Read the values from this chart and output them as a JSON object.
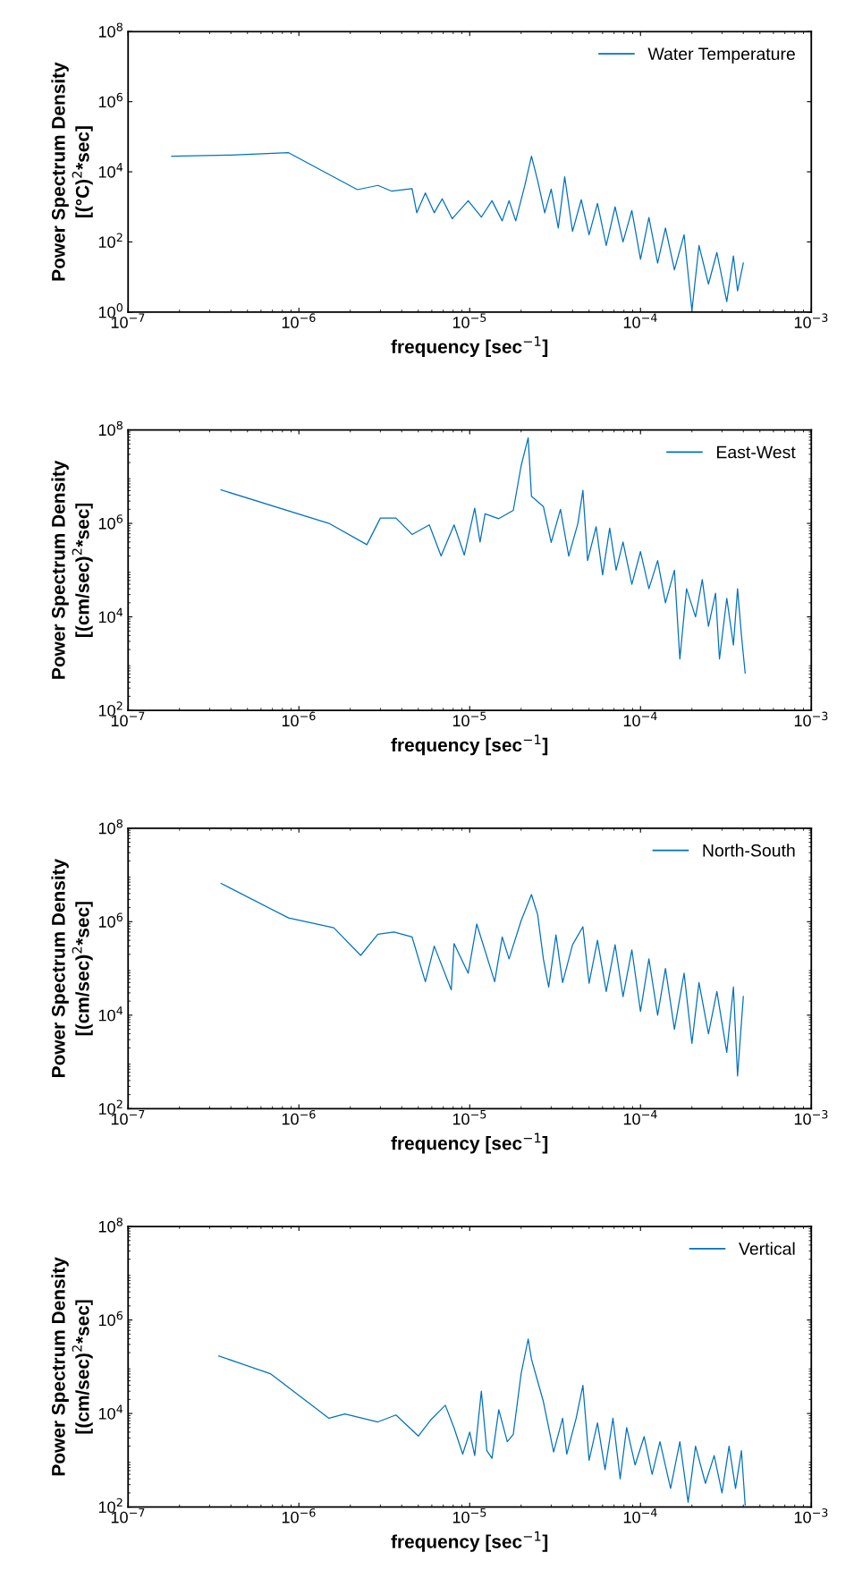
{
  "chart_data": [
    {
      "type": "line",
      "xlabel": "frequency [sec$^{−1}$]",
      "ylabel": "Power Spectrum Density\n[(°C)$^{2}$*sec]",
      "log": "xy",
      "legend": "top right",
      "grid": false,
      "xlim": [
        1e-07,
        0.001
      ],
      "ylim": [
        1,
        100000000.0
      ],
      "xticks": [
        {
          "value": 1e-07,
          "label": "10$^{−7}$"
        },
        {
          "value": 1e-06,
          "label": "10$^{−6}$"
        },
        {
          "value": 1e-05,
          "label": "10$^{−5}$"
        },
        {
          "value": 0.0001,
          "label": "10$^{−4}$"
        },
        {
          "value": 0.001,
          "label": "10$^{−3}$"
        }
      ],
      "yticks": [
        {
          "value": 1,
          "label": "10$^{0}$"
        },
        {
          "value": 100,
          "label": "10$^{2}$"
        },
        {
          "value": 10000,
          "label": "10$^{4}$"
        },
        {
          "value": 1000000,
          "label": "10$^{6}$"
        },
        {
          "value": 100000000,
          "label": "10$^{8}$"
        }
      ],
      "series": [
        {
          "name": "Water Temperature",
          "color": "#0072bd",
          "x": [
            1.8e-07,
            4e-07,
            8.7e-07,
            2.2e-06,
            2.9e-06,
            3.5e-06,
            4.6e-06,
            4.9e-06,
            5.5e-06,
            6.2e-06,
            6.9e-06,
            7.9e-06,
            9.8e-06,
            1.17e-05,
            1.35e-05,
            1.55e-05,
            1.7e-05,
            1.86e-05,
            2.1e-05,
            2.3e-05,
            2.5e-05,
            2.75e-05,
            3e-05,
            3.3e-05,
            3.6e-05,
            4e-05,
            4.5e-05,
            5e-05,
            5.6e-05,
            6.3e-05,
            7.1e-05,
            7.9e-05,
            8.9e-05,
            0.0001,
            0.000112,
            0.000126,
            0.00014,
            0.000158,
            0.00018,
            0.0002,
            0.00022,
            0.00025,
            0.00028,
            0.00032,
            0.00035,
            0.00037,
            0.0004
          ],
          "values": [
            28000.0,
            30000.0,
            35000.0,
            3100.0,
            4100.0,
            2800.0,
            3300.0,
            680.0,
            2500.0,
            680.0,
            1700.0,
            460.0,
            1500.0,
            510.0,
            1500.0,
            400.0,
            1500.0,
            400.0,
            4000.0,
            28000.0,
            5600.0,
            680.0,
            3200.0,
            250.0,
            7200.0,
            200.0,
            1600.0,
            160.0,
            1260.0,
            79,
            1000.0,
            100.0,
            790.0,
            32,
            500.0,
            25,
            250.0,
            16,
            160.0,
            1.1,
            79,
            6.3,
            50,
            2.0,
            40,
            4.0,
            25
          ]
        }
      ]
    },
    {
      "type": "line",
      "xlabel": "frequency [sec$^{−1}$]",
      "ylabel": "Power Spectrum Density\n[(cm/sec)$^{2}$*sec]",
      "log": "xy",
      "legend": "top right",
      "grid": false,
      "xlim": [
        1e-07,
        0.001
      ],
      "ylim": [
        100,
        100000000.0
      ],
      "xticks": [
        {
          "value": 1e-07,
          "label": "10$^{−7}$"
        },
        {
          "value": 1e-06,
          "label": "10$^{−6}$"
        },
        {
          "value": 1e-05,
          "label": "10$^{−5}$"
        },
        {
          "value": 0.0001,
          "label": "10$^{−4}$"
        },
        {
          "value": 0.001,
          "label": "10$^{−3}$"
        }
      ],
      "yticks": [
        {
          "value": 100,
          "label": "10$^{2}$"
        },
        {
          "value": 10000,
          "label": "10$^{4}$"
        },
        {
          "value": 1000000,
          "label": "10$^{6}$"
        },
        {
          "value": 100000000,
          "label": "10$^{8}$"
        }
      ],
      "series": [
        {
          "name": "East-West",
          "color": "#0072bd",
          "x": [
            3.5e-07,
            1.5e-06,
            2.5e-06,
            3e-06,
            3.7e-06,
            4.6e-06,
            5.8e-06,
            6.8e-06,
            8.1e-06,
            9.3e-06,
            1.07e-05,
            1.15e-05,
            1.23e-05,
            1.48e-05,
            1.8e-05,
            2e-05,
            2.2e-05,
            2.3e-05,
            2.7e-05,
            3e-05,
            3.4e-05,
            3.8e-05,
            4.3e-05,
            4.6e-05,
            4.9e-05,
            5.5e-05,
            6e-05,
            6.6e-05,
            7.2e-05,
            7.9e-05,
            8.9e-05,
            0.0001,
            0.000112,
            0.000126,
            0.00014,
            0.000158,
            0.00017,
            0.000186,
            0.00021,
            0.00023,
            0.00025,
            0.000275,
            0.00029,
            0.00032,
            0.00035,
            0.00037,
            0.00039,
            0.00041
          ],
          "values": [
            5200000.0,
            1000000.0,
            350000.0,
            1300000.0,
            1300000.0,
            580000.0,
            930000.0,
            200000.0,
            930000.0,
            210000.0,
            2100000.0,
            400000.0,
            1600000.0,
            1260000.0,
            1900000.0,
            17000000.0,
            68000000.0,
            3800000.0,
            2300000.0,
            390000.0,
            2000000.0,
            200000.0,
            1000000.0,
            5100000.0,
            160000.0,
            850000.0,
            79000.0,
            790000.0,
            100000.0,
            400000.0,
            50000.0,
            250000.0,
            40000.0,
            160000.0,
            20000.0,
            100000.0,
            1260.0,
            40000.0,
            10000.0,
            63000.0,
            6300.0,
            32000.0,
            1260.0,
            25000.0,
            2500.0,
            40000.0,
            4000.0,
            630.0
          ]
        }
      ]
    },
    {
      "type": "line",
      "xlabel": "frequency [sec$^{−1}$]",
      "ylabel": "Power Spectrum Density\n[(cm/sec)$^{2}$*sec]",
      "log": "xy",
      "legend": "top right",
      "grid": false,
      "xlim": [
        1e-07,
        0.001
      ],
      "ylim": [
        100,
        100000000.0
      ],
      "xticks": [
        {
          "value": 1e-07,
          "label": "10$^{−7}$"
        },
        {
          "value": 1e-06,
          "label": "10$^{−6}$"
        },
        {
          "value": 1e-05,
          "label": "10$^{−5}$"
        },
        {
          "value": 0.0001,
          "label": "10$^{−4}$"
        },
        {
          "value": 0.001,
          "label": "10$^{−3}$"
        }
      ],
      "yticks": [
        {
          "value": 100,
          "label": "10$^{2}$"
        },
        {
          "value": 10000,
          "label": "10$^{4}$"
        },
        {
          "value": 1000000,
          "label": "10$^{6}$"
        },
        {
          "value": 100000000,
          "label": "10$^{8}$"
        }
      ],
      "series": [
        {
          "name": "North-South",
          "color": "#0072bd",
          "x": [
            3.5e-07,
            8.7e-07,
            1.6e-06,
            2.3e-06,
            2.9e-06,
            3.6e-06,
            4.6e-06,
            5.5e-06,
            6.2e-06,
            7.8e-06,
            8.1e-06,
            9.8e-06,
            1.1e-05,
            1.4e-05,
            1.55e-05,
            1.7e-05,
            2e-05,
            2.3e-05,
            2.5e-05,
            2.7e-05,
            2.9e-05,
            3.2e-05,
            3.5e-05,
            4e-05,
            4.6e-05,
            5e-05,
            5.6e-05,
            6.3e-05,
            7.1e-05,
            7.9e-05,
            8.9e-05,
            0.0001,
            0.000112,
            0.000126,
            0.00014,
            0.000158,
            0.00018,
            0.0002,
            0.00022,
            0.00025,
            0.00028,
            0.00032,
            0.00035,
            0.00037,
            0.0004
          ],
          "values": [
            6600000.0,
            1200000.0,
            740000.0,
            190000.0,
            540000.0,
            600000.0,
            470000.0,
            52000.0,
            300000.0,
            35000.0,
            340000.0,
            79000.0,
            890000.0,
            52000.0,
            470000.0,
            160000.0,
            1050000.0,
            3800000.0,
            1400000.0,
            160000.0,
            40000.0,
            520000.0,
            50000.0,
            320000.0,
            780000.0,
            48000.0,
            400000.0,
            32000.0,
            320000.0,
            25000.0,
            250000.0,
            12000.0,
            160000.0,
            10000.0,
            100000.0,
            5000.0,
            79000.0,
            2500.0,
            50000.0,
            4000.0,
            32000.0,
            1600.0,
            40000.0,
            500.0,
            25000.0
          ]
        }
      ]
    },
    {
      "type": "line",
      "xlabel": "frequency [sec$^{−1}$]",
      "ylabel": "Power Spectrum Density\n[(cm/sec)$^{2}$*sec]",
      "log": "xy",
      "legend": "top right",
      "grid": false,
      "xlim": [
        1e-07,
        0.001
      ],
      "ylim": [
        100,
        100000000.0
      ],
      "xticks": [
        {
          "value": 1e-07,
          "label": "10$^{−7}$"
        },
        {
          "value": 1e-06,
          "label": "10$^{−6}$"
        },
        {
          "value": 1e-05,
          "label": "10$^{−5}$"
        },
        {
          "value": 0.0001,
          "label": "10$^{−4}$"
        },
        {
          "value": 0.001,
          "label": "10$^{−3}$"
        }
      ],
      "yticks": [
        {
          "value": 100,
          "label": "10$^{2}$"
        },
        {
          "value": 10000,
          "label": "10$^{4}$"
        },
        {
          "value": 1000000,
          "label": "10$^{6}$"
        },
        {
          "value": 100000000,
          "label": "10$^{8}$"
        }
      ],
      "series": [
        {
          "name": "Vertical",
          "color": "#0072bd",
          "x": [
            3.4e-07,
            6.8e-07,
            1.5e-06,
            1.86e-06,
            2.9e-06,
            3.7e-06,
            5e-06,
            5.9e-06,
            7.2e-06,
            8.1e-06,
            9.1e-06,
            1e-05,
            1.07e-05,
            1.17e-05,
            1.26e-05,
            1.35e-05,
            1.48e-05,
            1.66e-05,
            1.8e-05,
            2e-05,
            2.2e-05,
            2.3e-05,
            2.7e-05,
            3.1e-05,
            3.5e-05,
            3.7e-05,
            4.2e-05,
            4.6e-05,
            5e-05,
            5.6e-05,
            6.2e-05,
            6.9e-05,
            7.6e-05,
            8.3e-05,
            9.3e-05,
            0.000105,
            0.000117,
            0.00013,
            0.00015,
            0.00017,
            0.00019,
            0.00021,
            0.00024,
            0.00027,
            0.0003,
            0.00033,
            0.00036,
            0.00039,
            0.00041
          ],
          "values": [
            170000.0,
            71000.0,
            7900.0,
            9800.0,
            6600.0,
            9300.0,
            3300.0,
            7200.0,
            15000.0,
            4900.0,
            1350.0,
            4000.0,
            1260.0,
            30000.0,
            1600.0,
            1100.0,
            12000.0,
            2500.0,
            3600.0,
            71000.0,
            390000.0,
            145000.0,
            18000.0,
            1500.0,
            7900.0,
            1350.0,
            7900.0,
            40000.0,
            1000.0,
            6300.0,
            630.0,
            7900.0,
            400.0,
            5000.0,
            790.0,
            3200.0,
            500.0,
            2500.0,
            250.0,
            2500.0,
            126.0,
            2000.0,
            320.0,
            1260.0,
            200.0,
            2000.0,
            250.0,
            1600.0,
            110.0
          ]
        }
      ]
    }
  ]
}
